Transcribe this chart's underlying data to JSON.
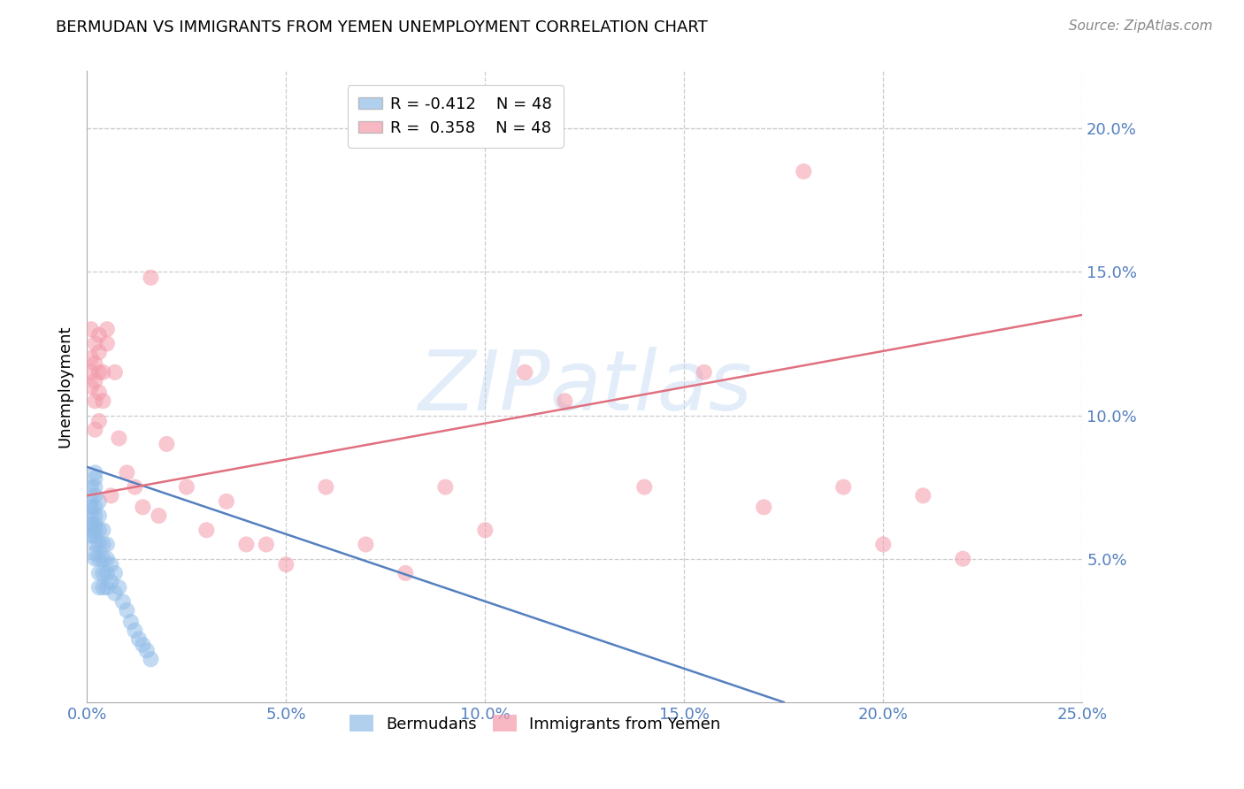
{
  "title": "BERMUDAN VS IMMIGRANTS FROM YEMEN UNEMPLOYMENT CORRELATION CHART",
  "source": "Source: ZipAtlas.com",
  "ylabel": "Unemployment",
  "watermark": "ZIPatlas",
  "xlim": [
    0.0,
    0.25
  ],
  "ylim": [
    0.0,
    0.22
  ],
  "xticks": [
    0.0,
    0.05,
    0.1,
    0.15,
    0.2,
    0.25
  ],
  "yticks_right": [
    0.05,
    0.1,
    0.15,
    0.2
  ],
  "ytick_labels_right": [
    "5.0%",
    "10.0%",
    "15.0%",
    "20.0%"
  ],
  "xtick_labels": [
    "0.0%",
    "5.0%",
    "10.0%",
    "15.0%",
    "20.0%",
    "25.0%"
  ],
  "blue_R": -0.412,
  "pink_R": 0.358,
  "N": 48,
  "blue_color": "#90bce8",
  "pink_color": "#f49aaa",
  "blue_line_color": "#5580c0",
  "pink_line_color": "#e07080",
  "legend_label_blue": "Bermudans",
  "legend_label_pink": "Immigrants from Yemen",
  "blue_scatter_x": [
    0.001,
    0.001,
    0.001,
    0.001,
    0.001,
    0.001,
    0.001,
    0.002,
    0.002,
    0.002,
    0.002,
    0.002,
    0.002,
    0.002,
    0.002,
    0.002,
    0.002,
    0.002,
    0.002,
    0.003,
    0.003,
    0.003,
    0.003,
    0.003,
    0.003,
    0.003,
    0.004,
    0.004,
    0.004,
    0.004,
    0.004,
    0.005,
    0.005,
    0.005,
    0.005,
    0.006,
    0.006,
    0.007,
    0.007,
    0.008,
    0.009,
    0.01,
    0.011,
    0.012,
    0.013,
    0.014,
    0.015,
    0.016
  ],
  "blue_scatter_y": [
    0.075,
    0.07,
    0.068,
    0.065,
    0.062,
    0.06,
    0.058,
    0.08,
    0.078,
    0.075,
    0.072,
    0.068,
    0.065,
    0.062,
    0.06,
    0.058,
    0.055,
    0.052,
    0.05,
    0.07,
    0.065,
    0.06,
    0.055,
    0.05,
    0.045,
    0.04,
    0.06,
    0.055,
    0.05,
    0.045,
    0.04,
    0.055,
    0.05,
    0.045,
    0.04,
    0.048,
    0.042,
    0.045,
    0.038,
    0.04,
    0.035,
    0.032,
    0.028,
    0.025,
    0.022,
    0.02,
    0.018,
    0.015
  ],
  "pink_scatter_x": [
    0.001,
    0.001,
    0.001,
    0.001,
    0.002,
    0.002,
    0.002,
    0.002,
    0.002,
    0.003,
    0.003,
    0.003,
    0.003,
    0.003,
    0.004,
    0.004,
    0.005,
    0.005,
    0.006,
    0.007,
    0.008,
    0.01,
    0.012,
    0.014,
    0.016,
    0.018,
    0.02,
    0.025,
    0.03,
    0.035,
    0.04,
    0.045,
    0.05,
    0.06,
    0.07,
    0.08,
    0.09,
    0.1,
    0.11,
    0.12,
    0.14,
    0.155,
    0.17,
    0.18,
    0.19,
    0.2,
    0.21,
    0.22
  ],
  "pink_scatter_y": [
    0.13,
    0.12,
    0.115,
    0.11,
    0.125,
    0.118,
    0.112,
    0.105,
    0.095,
    0.128,
    0.122,
    0.115,
    0.108,
    0.098,
    0.115,
    0.105,
    0.13,
    0.125,
    0.072,
    0.115,
    0.092,
    0.08,
    0.075,
    0.068,
    0.148,
    0.065,
    0.09,
    0.075,
    0.06,
    0.07,
    0.055,
    0.055,
    0.048,
    0.075,
    0.055,
    0.045,
    0.075,
    0.06,
    0.115,
    0.105,
    0.075,
    0.115,
    0.068,
    0.185,
    0.075,
    0.055,
    0.072,
    0.05
  ],
  "blue_line_x": [
    0.0,
    0.175
  ],
  "blue_line_y": [
    0.082,
    0.0
  ],
  "pink_line_x": [
    0.0,
    0.25
  ],
  "pink_line_y": [
    0.072,
    0.135
  ]
}
